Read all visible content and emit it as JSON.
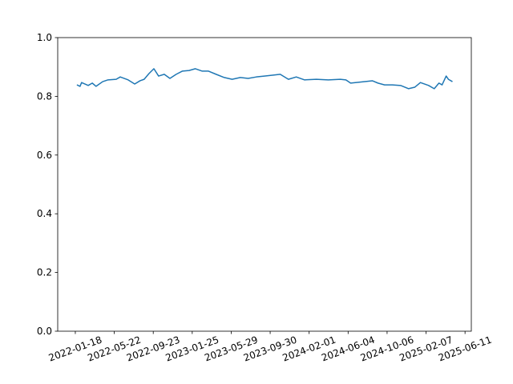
{
  "chart_data": {
    "type": "line",
    "color": "#1f77b4",
    "x": [
      "2022-01-23",
      "2022-02-02",
      "2022-02-07",
      "2022-02-28",
      "2022-03-13",
      "2022-03-25",
      "2022-04-15",
      "2022-05-02",
      "2022-05-28",
      "2022-06-10",
      "2022-07-05",
      "2022-07-26",
      "2022-08-12",
      "2022-08-25",
      "2022-09-09",
      "2022-09-25",
      "2022-10-10",
      "2022-10-28",
      "2022-11-15",
      "2022-12-05",
      "2022-12-25",
      "2023-01-15",
      "2023-02-04",
      "2023-02-25",
      "2023-03-17",
      "2023-04-11",
      "2023-05-07",
      "2023-06-01",
      "2023-06-27",
      "2023-07-22",
      "2023-08-17",
      "2023-09-11",
      "2023-10-07",
      "2023-11-01",
      "2023-11-27",
      "2023-12-22",
      "2024-01-17",
      "2024-02-24",
      "2024-04-02",
      "2024-05-10",
      "2024-05-28",
      "2024-06-12",
      "2024-08-20",
      "2024-09-07",
      "2024-09-28",
      "2024-10-23",
      "2024-11-18",
      "2024-12-13",
      "2025-01-02",
      "2025-01-20",
      "2025-02-15",
      "2025-03-05",
      "2025-03-20",
      "2025-03-30",
      "2025-04-12",
      "2025-04-19",
      "2025-05-02"
    ],
    "values": [
      0.839,
      0.834,
      0.847,
      0.837,
      0.845,
      0.834,
      0.85,
      0.856,
      0.858,
      0.866,
      0.856,
      0.842,
      0.853,
      0.858,
      0.877,
      0.894,
      0.869,
      0.875,
      0.861,
      0.875,
      0.886,
      0.888,
      0.894,
      0.886,
      0.886,
      0.875,
      0.864,
      0.858,
      0.864,
      0.861,
      0.866,
      0.869,
      0.872,
      0.875,
      0.858,
      0.866,
      0.856,
      0.858,
      0.856,
      0.858,
      0.856,
      0.845,
      0.853,
      0.845,
      0.839,
      0.839,
      0.837,
      0.826,
      0.831,
      0.847,
      0.837,
      0.826,
      0.845,
      0.839,
      0.869,
      0.858,
      0.85
    ],
    "xlim": [
      "2021-11-23",
      "2025-07-01"
    ],
    "xticks": [
      "2022-01-18",
      "2022-05-22",
      "2022-09-23",
      "2023-01-25",
      "2023-05-29",
      "2023-09-30",
      "2024-02-01",
      "2024-06-04",
      "2024-10-06",
      "2025-02-07",
      "2025-06-11"
    ],
    "ylim": [
      0,
      1
    ],
    "yticks": [
      {
        "value": 0,
        "label": "0.0"
      },
      0.2,
      0.4,
      0.6,
      0.8,
      {
        "value": 1,
        "label": "1.0"
      }
    ]
  }
}
